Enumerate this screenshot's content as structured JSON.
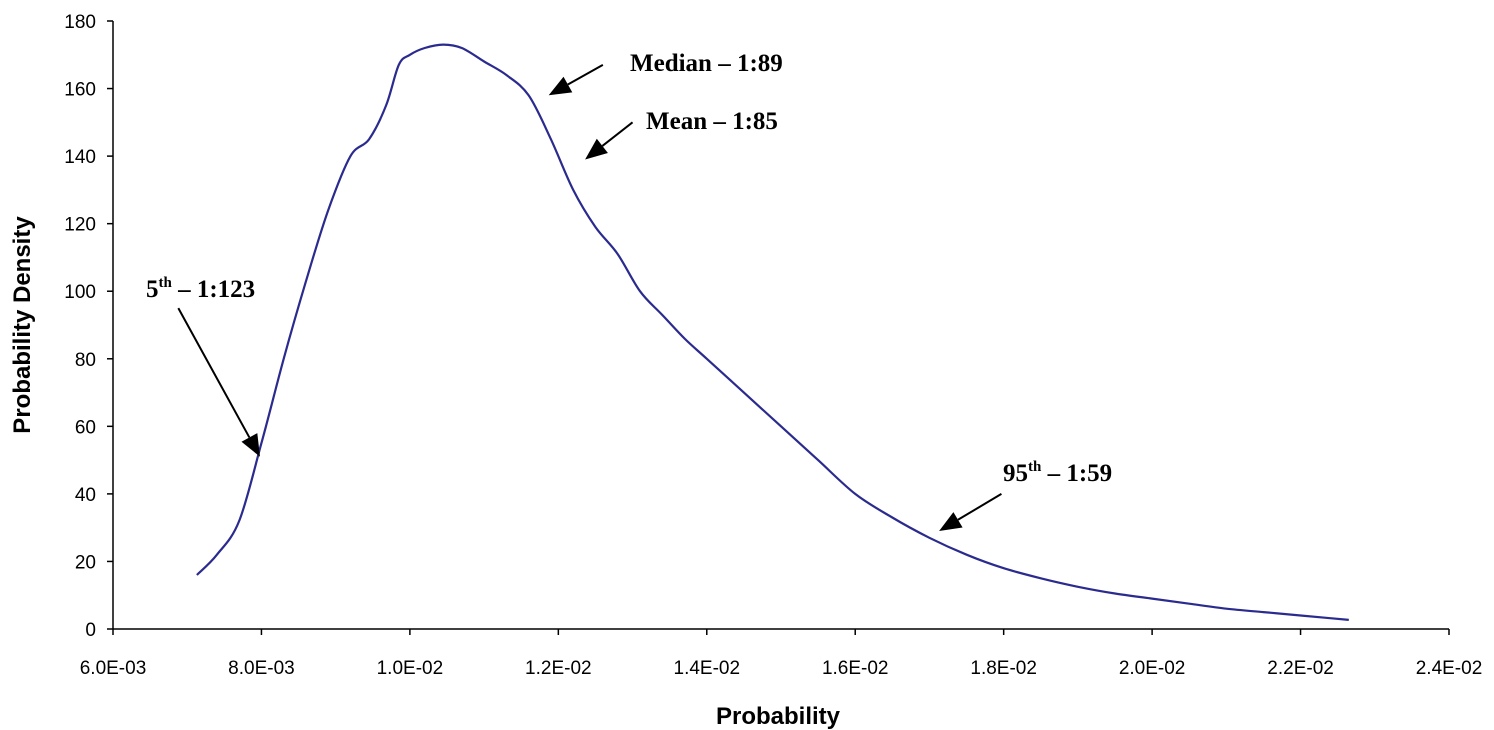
{
  "chart_data": {
    "type": "line",
    "title": "",
    "xlabel": "Probability",
    "ylabel": "Probability Density",
    "xlim": [
      0.006,
      0.024
    ],
    "ylim": [
      0,
      180
    ],
    "x_ticks": [
      0.006,
      0.008,
      0.01,
      0.012,
      0.014,
      0.016,
      0.018,
      0.02,
      0.022,
      0.024
    ],
    "x_tick_labels": [
      "6.0E-03",
      "8.0E-03",
      "1.0E-02",
      "1.2E-02",
      "1.4E-02",
      "1.6E-02",
      "1.8E-02",
      "2.0E-02",
      "2.2E-02",
      "2.4E-02"
    ],
    "y_ticks": [
      0,
      20,
      40,
      60,
      80,
      100,
      120,
      140,
      160,
      180
    ],
    "y_tick_labels": [
      "0",
      "20",
      "40",
      "60",
      "80",
      "100",
      "120",
      "140",
      "160",
      "180"
    ],
    "grid": false,
    "legend": "none",
    "series": [
      {
        "color": "#2b2b8f",
        "x": [
          0.00713,
          0.0074,
          0.0077,
          0.008,
          0.0083,
          0.0086,
          0.0089,
          0.0092,
          0.00945,
          0.00968,
          0.00985,
          0.01,
          0.0102,
          0.01045,
          0.0107,
          0.011,
          0.0113,
          0.0116,
          0.0119,
          0.0122,
          0.0125,
          0.0128,
          0.0131,
          0.0134,
          0.0137,
          0.014,
          0.0145,
          0.015,
          0.0155,
          0.016,
          0.0165,
          0.017,
          0.0175,
          0.018,
          0.0185,
          0.019,
          0.0195,
          0.02,
          0.0205,
          0.021,
          0.0215,
          0.022,
          0.0224,
          0.02265
        ],
        "y": [
          16,
          22,
          32,
          55,
          80,
          103,
          124,
          140,
          145,
          155,
          167,
          170,
          172,
          173,
          172,
          168,
          164,
          158,
          145,
          130,
          119,
          111,
          100,
          93,
          86,
          80,
          70,
          60,
          50,
          40,
          33,
          27,
          22,
          18,
          15,
          12.5,
          10.5,
          9,
          7.5,
          6,
          5,
          4,
          3.2,
          2.7
        ]
      }
    ],
    "annotations": [
      {
        "id": "p5",
        "text": "5",
        "sup": "th",
        "rest": " – 1:123",
        "point": [
          0.00798,
          51
        ],
        "from": [
          0.00688,
          95
        ]
      },
      {
        "id": "median",
        "text": "Median – 1:89",
        "sup": "",
        "rest": "",
        "point": [
          0.01187,
          158
        ],
        "from": [
          0.0126,
          167
        ]
      },
      {
        "id": "mean",
        "text": "Mean – 1:85",
        "sup": "",
        "rest": "",
        "point": [
          0.01236,
          139
        ],
        "from": [
          0.013,
          150
        ]
      },
      {
        "id": "p95",
        "text": "95",
        "sup": "th",
        "rest": " – 1:59",
        "point": [
          0.01713,
          29
        ],
        "from": [
          0.01797,
          40
        ]
      }
    ]
  }
}
